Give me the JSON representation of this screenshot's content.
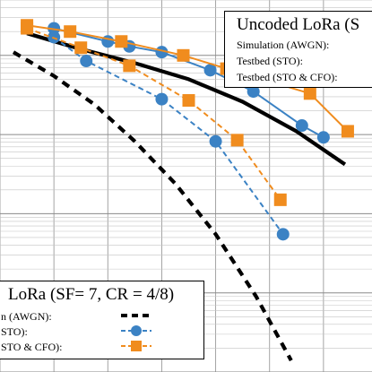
{
  "chart_data": {
    "type": "line",
    "x_scale": "linear",
    "y_scale": "log",
    "grid": true,
    "series": [
      {
        "group": "uncoded",
        "kind": "Simulation (AWGN)",
        "color": "#000000",
        "dash": "solid",
        "marker": "none",
        "x": [
          -13.0,
          -11.0,
          -9.0,
          -7.0,
          -5.0,
          -3.0,
          -1.2
        ],
        "y": [
          0.19,
          0.12,
          0.08,
          0.05,
          0.026,
          0.011,
          0.0042
        ]
      },
      {
        "group": "uncoded",
        "kind": "Testbed (STO)",
        "color": "#3b82c4",
        "dash": "solid",
        "marker": "circle",
        "x": [
          -12.0,
          -10.0,
          -9.2,
          -8.0,
          -6.2,
          -4.6,
          -2.8,
          -2.0
        ],
        "y": [
          0.22,
          0.15,
          0.13,
          0.11,
          0.065,
          0.035,
          0.013,
          0.0092
        ]
      },
      {
        "group": "uncoded",
        "kind": "Testbed (STO & CFO)",
        "color": "#f08c1e",
        "dash": "solid",
        "marker": "square",
        "x": [
          -13.0,
          -11.4,
          -9.5,
          -7.2,
          -5.6,
          -2.5,
          -1.1
        ],
        "y": [
          0.24,
          0.2,
          0.15,
          0.1,
          0.068,
          0.033,
          0.011
        ]
      },
      {
        "group": "coded",
        "kind": "Simulation (AWGN)",
        "color": "#000000",
        "dash": "dashed",
        "marker": "none",
        "x": [
          -13.5,
          -12.0,
          -10.5,
          -9.0,
          -7.5,
          -6.0,
          -4.5,
          -3.2
        ],
        "y": [
          0.11,
          0.055,
          0.024,
          0.0082,
          0.0024,
          0.00055,
          9e-05,
          1.4e-05
        ]
      },
      {
        "group": "coded",
        "kind": "Testbed (STO)",
        "color": "#3b82c4",
        "dash": "dashed",
        "marker": "circle",
        "x": [
          -12.0,
          -10.8,
          -8.0,
          -6.0,
          -3.5
        ],
        "y": [
          0.17,
          0.085,
          0.028,
          0.0082,
          0.00055
        ]
      },
      {
        "group": "coded",
        "kind": "Testbed (STO & CFO)",
        "color": "#f08c1e",
        "dash": "dashed",
        "marker": "square",
        "x": [
          -13.0,
          -11.0,
          -9.2,
          -7.0,
          -5.2,
          -3.6
        ],
        "y": [
          0.22,
          0.125,
          0.074,
          0.027,
          0.0085,
          0.0015
        ]
      }
    ],
    "legend_uncoded": {
      "title": "Uncoded LoRa (S",
      "entries": [
        "Simulation (AWGN):",
        "Testbed (STO):",
        "Testbed (STO & CFO):"
      ]
    },
    "legend_coded": {
      "title": "LoRa (SF= 7, CR = 4/8)",
      "entries": [
        "n (AWGN):",
        "STO):",
        "STO & CFO):"
      ]
    }
  }
}
